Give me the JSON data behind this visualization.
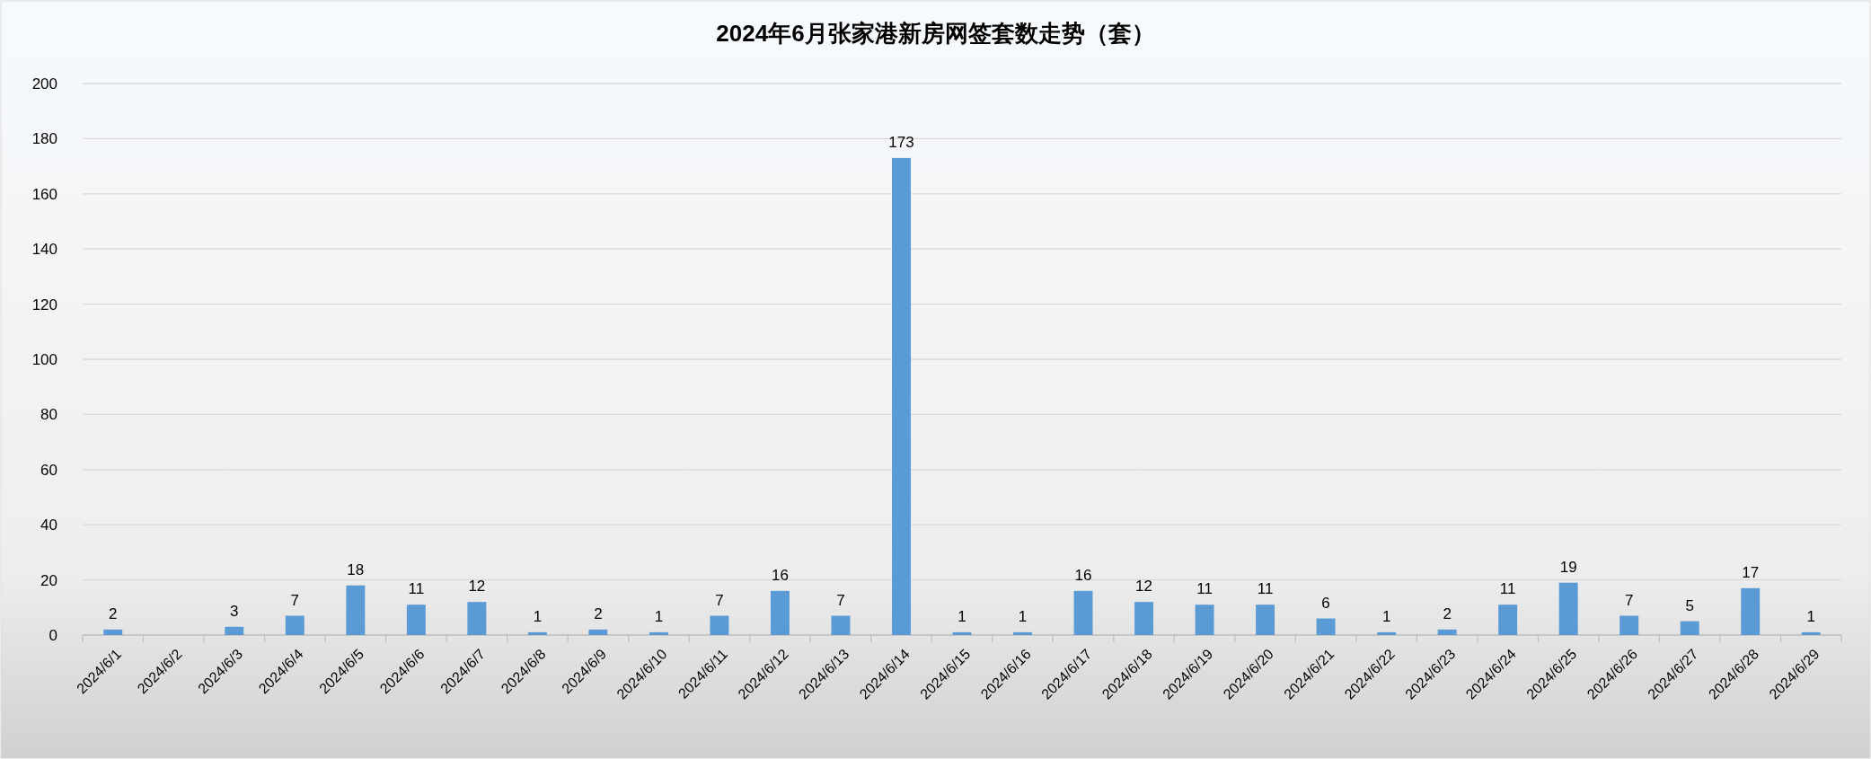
{
  "chart_data": {
    "type": "bar",
    "title": "2024年6月张家港新房网签套数走势（套）",
    "categories": [
      "2024/6/1",
      "2024/6/2",
      "2024/6/3",
      "2024/6/4",
      "2024/6/5",
      "2024/6/6",
      "2024/6/7",
      "2024/6/8",
      "2024/6/9",
      "2024/6/10",
      "2024/6/11",
      "2024/6/12",
      "2024/6/13",
      "2024/6/14",
      "2024/6/15",
      "2024/6/16",
      "2024/6/17",
      "2024/6/18",
      "2024/6/19",
      "2024/6/20",
      "2024/6/21",
      "2024/6/22",
      "2024/6/23",
      "2024/6/24",
      "2024/6/25",
      "2024/6/26",
      "2024/6/27",
      "2024/6/28",
      "2024/6/29"
    ],
    "values": [
      2,
      null,
      3,
      7,
      18,
      11,
      12,
      1,
      2,
      1,
      7,
      16,
      7,
      173,
      1,
      1,
      16,
      12,
      11,
      11,
      6,
      1,
      2,
      11,
      19,
      7,
      5,
      17,
      1
    ],
    "color": "#5b9bd5",
    "ylim": [
      0,
      200
    ],
    "yticks": [
      0,
      20,
      40,
      60,
      80,
      100,
      120,
      140,
      160,
      180,
      200
    ],
    "grid": "y",
    "data_labels": true
  }
}
